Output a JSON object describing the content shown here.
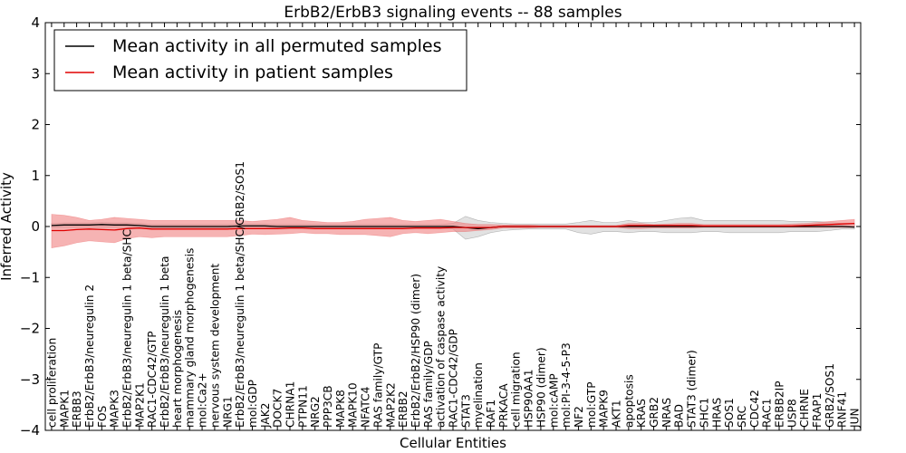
{
  "chart_data": {
    "type": "line",
    "title": "ErbB2/ErbB3 signaling events -- 88 samples",
    "xlabel": "Cellular Entities",
    "ylabel": "Inferred Activity",
    "ylim": [
      -4,
      4
    ],
    "yticks": [
      -4,
      -3,
      -2,
      -1,
      0,
      1,
      2,
      3,
      4
    ],
    "ytick_labels": [
      "−4",
      "−3",
      "−2",
      "−1",
      "0",
      "1",
      "2",
      "3",
      "4"
    ],
    "grid": false,
    "legend_position": "top-left",
    "categories": [
      "cell proliferation",
      "MAPK1",
      "ERBB3",
      "ErbB2/ErbB3/neuregulin 2",
      "FOS",
      "MAPK3",
      "ErbB2/ErbB3/neuregulin 1 beta/SHC",
      "MAP2K1",
      "RAC1-CDC42/GTP",
      "ErbB2/ErbB3/neuregulin 1 beta",
      "heart morphogenesis",
      "mammary gland morphogenesis",
      "mol:Ca2+",
      "nervous system development",
      "NRG1",
      "ErbB2/ErbB3/neuregulin 1 beta/SHC/GRB2/SOS1",
      "mol:GDP",
      "JAK2",
      "DOCK7",
      "CHRNA1",
      "PTPN11",
      "NRG2",
      "PPP3CB",
      "MAPK8",
      "MAPK10",
      "NFATC4",
      "RAS family/GTP",
      "MAP2K2",
      "ERBB2",
      "ErbB2/ErbB2/HSP90 (dimer)",
      "RAS family/GDP",
      "activation of caspase activity",
      "RAC1-CDC42/GDP",
      "STAT3",
      "myelination",
      "RAF1",
      "PRKACA",
      "cell migration",
      "HSP90AA1",
      "HSP90 (dimer)",
      "mol:cAMP",
      "mol:PI-3-4-5-P3",
      "NF2",
      "mol:GTP",
      "MAPK9",
      "AKT1",
      "apoptosis",
      "KRAS",
      "GRB2",
      "NRAS",
      "BAD",
      "STAT3 (dimer)",
      "SHC1",
      "HRAS",
      "SOS1",
      "SRC",
      "CDC42",
      "RAC1",
      "ERBB2IP",
      "USP8",
      "CHRNE",
      "FRAP1",
      "GRB2/SOS1",
      "RNF41",
      "JUN"
    ],
    "series": [
      {
        "name": "Mean activity in all permuted samples",
        "color": "#000000",
        "values": [
          0.02,
          0.03,
          0.03,
          0.03,
          0.04,
          0.03,
          0.03,
          0.02,
          0.0,
          0.0,
          0.0,
          0.0,
          0.0,
          0.0,
          0.0,
          0.01,
          0.01,
          0.01,
          0.0,
          0.0,
          0.0,
          0.0,
          0.0,
          0.0,
          0.0,
          0.0,
          0.0,
          0.0,
          0.0,
          0.0,
          0.0,
          0.0,
          0.0,
          -0.02,
          -0.04,
          -0.02,
          0.0,
          0.0,
          0.0,
          0.0,
          0.0,
          0.0,
          0.0,
          0.0,
          0.0,
          0.0,
          0.0,
          0.0,
          0.0,
          0.0,
          0.0,
          0.0,
          0.0,
          0.0,
          0.0,
          0.0,
          0.0,
          0.0,
          0.0,
          0.0,
          0.0,
          0.0,
          0.0,
          0.0,
          -0.01
        ],
        "lower": [
          -0.02,
          -0.02,
          -0.02,
          -0.02,
          -0.02,
          -0.02,
          -0.02,
          -0.02,
          -0.03,
          -0.03,
          -0.03,
          -0.03,
          -0.03,
          -0.03,
          -0.03,
          -0.03,
          -0.03,
          -0.03,
          -0.03,
          -0.03,
          -0.03,
          -0.03,
          -0.03,
          -0.03,
          -0.03,
          -0.03,
          -0.03,
          -0.03,
          -0.03,
          -0.03,
          -0.03,
          -0.03,
          -0.05,
          -0.25,
          -0.2,
          -0.12,
          -0.08,
          -0.06,
          -0.05,
          -0.05,
          -0.05,
          -0.05,
          -0.12,
          -0.15,
          -0.1,
          -0.1,
          -0.12,
          -0.1,
          -0.1,
          -0.12,
          -0.12,
          -0.12,
          -0.1,
          -0.1,
          -0.12,
          -0.12,
          -0.12,
          -0.12,
          -0.12,
          -0.1,
          -0.1,
          -0.1,
          -0.08,
          -0.05,
          -0.05
        ],
        "upper": [
          0.06,
          0.07,
          0.07,
          0.07,
          0.08,
          0.07,
          0.07,
          0.06,
          0.04,
          0.04,
          0.04,
          0.04,
          0.04,
          0.04,
          0.04,
          0.05,
          0.05,
          0.05,
          0.04,
          0.04,
          0.04,
          0.04,
          0.04,
          0.04,
          0.04,
          0.04,
          0.04,
          0.04,
          0.04,
          0.04,
          0.04,
          0.04,
          0.06,
          0.2,
          0.12,
          0.08,
          0.06,
          0.05,
          0.05,
          0.05,
          0.05,
          0.05,
          0.08,
          0.12,
          0.08,
          0.08,
          0.12,
          0.08,
          0.08,
          0.12,
          0.16,
          0.18,
          0.12,
          0.12,
          0.12,
          0.12,
          0.12,
          0.12,
          0.12,
          0.1,
          0.1,
          0.1,
          0.08,
          0.06,
          0.06
        ]
      },
      {
        "name": "Mean activity in patient samples",
        "color": "#e00000",
        "values": [
          -0.08,
          -0.08,
          -0.06,
          -0.05,
          -0.06,
          -0.07,
          -0.04,
          -0.03,
          -0.05,
          -0.05,
          -0.05,
          -0.05,
          -0.05,
          -0.05,
          -0.05,
          -0.04,
          -0.04,
          -0.04,
          -0.04,
          -0.03,
          -0.03,
          -0.04,
          -0.04,
          -0.04,
          -0.04,
          -0.04,
          -0.04,
          -0.04,
          -0.04,
          -0.03,
          -0.03,
          -0.03,
          -0.02,
          -0.02,
          -0.02,
          -0.02,
          0.0,
          0.0,
          0.0,
          0.0,
          0.0,
          0.0,
          0.0,
          0.0,
          0.0,
          0.0,
          0.02,
          0.02,
          0.02,
          0.02,
          0.02,
          0.02,
          0.01,
          0.01,
          0.01,
          0.01,
          0.01,
          0.01,
          0.01,
          0.01,
          0.02,
          0.03,
          0.04,
          0.05,
          0.06
        ],
        "lower": [
          -0.42,
          -0.38,
          -0.32,
          -0.28,
          -0.3,
          -0.32,
          -0.24,
          -0.2,
          -0.22,
          -0.2,
          -0.2,
          -0.2,
          -0.2,
          -0.2,
          -0.2,
          -0.18,
          -0.15,
          -0.16,
          -0.15,
          -0.14,
          -0.12,
          -0.14,
          -0.14,
          -0.16,
          -0.16,
          -0.16,
          -0.18,
          -0.2,
          -0.14,
          -0.12,
          -0.14,
          -0.12,
          -0.1,
          -0.1,
          -0.08,
          -0.06,
          -0.03,
          -0.03,
          -0.03,
          -0.02,
          -0.02,
          -0.02,
          -0.02,
          -0.02,
          -0.02,
          -0.02,
          -0.04,
          -0.04,
          -0.03,
          -0.03,
          -0.03,
          -0.03,
          -0.02,
          -0.02,
          -0.02,
          -0.02,
          -0.02,
          -0.02,
          -0.02,
          -0.02,
          -0.02,
          -0.02,
          -0.02,
          -0.02,
          -0.02
        ],
        "upper": [
          0.24,
          0.22,
          0.18,
          0.12,
          0.14,
          0.18,
          0.16,
          0.14,
          0.12,
          0.12,
          0.12,
          0.12,
          0.12,
          0.12,
          0.12,
          0.12,
          0.1,
          0.12,
          0.14,
          0.18,
          0.12,
          0.1,
          0.08,
          0.08,
          0.1,
          0.14,
          0.16,
          0.18,
          0.12,
          0.1,
          0.12,
          0.14,
          0.1,
          0.06,
          0.04,
          0.04,
          0.03,
          0.03,
          0.03,
          0.02,
          0.02,
          0.02,
          0.02,
          0.02,
          0.02,
          0.02,
          0.06,
          0.06,
          0.04,
          0.05,
          0.06,
          0.06,
          0.04,
          0.04,
          0.04,
          0.04,
          0.04,
          0.04,
          0.04,
          0.05,
          0.06,
          0.08,
          0.1,
          0.12,
          0.14
        ]
      }
    ]
  }
}
